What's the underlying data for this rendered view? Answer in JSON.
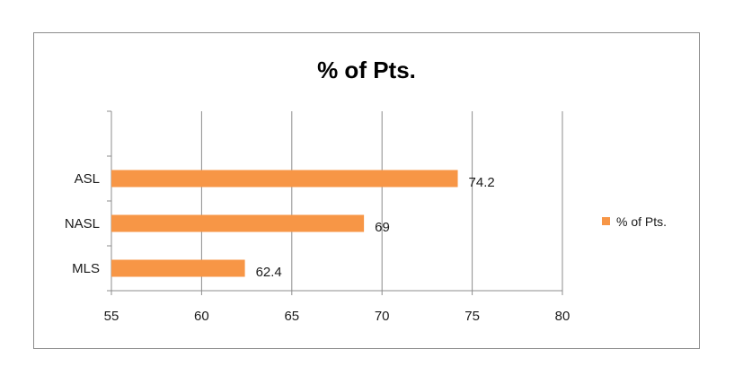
{
  "chart_data": {
    "type": "bar",
    "orientation": "horizontal",
    "title": "% of Pts.",
    "categories": [
      "MLS",
      "NASL",
      "ASL"
    ],
    "series": [
      {
        "name": "% of Pts.",
        "values": [
          62.4,
          69,
          74.2
        ],
        "color": "#f79646"
      }
    ],
    "data_labels": [
      "62.4",
      "69",
      "74.2"
    ],
    "xlim": [
      55,
      80
    ],
    "x_ticks": [
      55,
      60,
      65,
      70,
      75,
      80
    ],
    "grid": true,
    "legend_position": "right"
  }
}
